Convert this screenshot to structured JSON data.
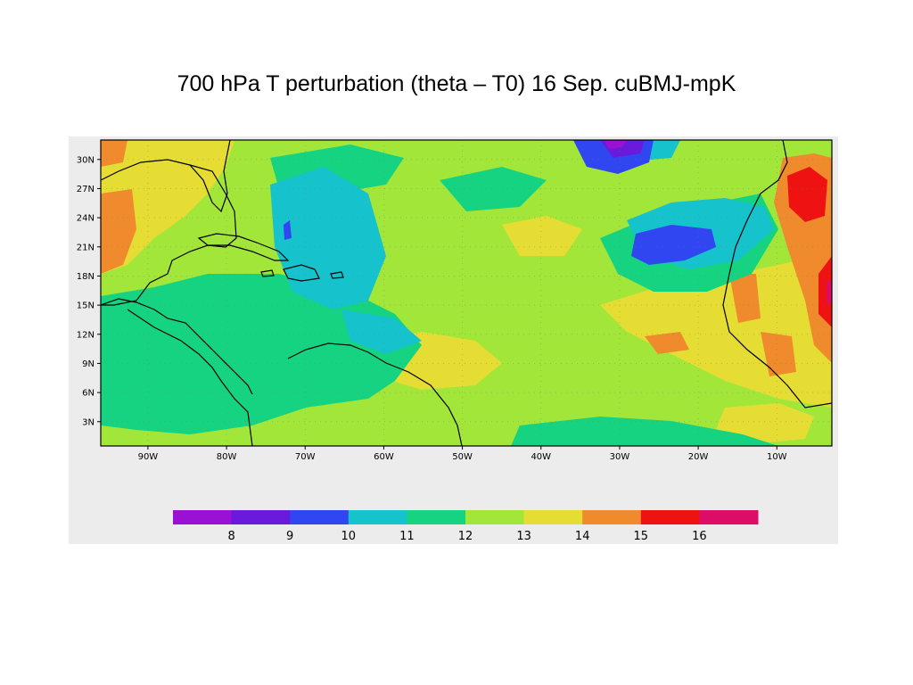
{
  "title": "700 hPa T perturbation (theta – T0) 16 Sep. cuBMJ-mpK",
  "map": {
    "lon_range": [
      -96,
      -3
    ],
    "lat_range": [
      0.5,
      32
    ],
    "lon_ticks": [
      "90W",
      "80W",
      "70W",
      "60W",
      "50W",
      "40W",
      "30W",
      "20W",
      "10W"
    ],
    "lon_tick_values": [
      -90,
      -80,
      -70,
      -60,
      -50,
      -40,
      -30,
      -20,
      -10
    ],
    "lat_ticks": [
      "30N",
      "27N",
      "24N",
      "21N",
      "18N",
      "15N",
      "12N",
      "9N",
      "6N",
      "3N"
    ],
    "lat_tick_values": [
      30,
      27,
      24,
      21,
      18,
      15,
      12,
      9,
      6,
      3
    ]
  },
  "colorbar": {
    "colors": [
      "#9a11d4",
      "#6a1adb",
      "#2f46f0",
      "#16c2cc",
      "#16d382",
      "#a3e63a",
      "#e5dd33",
      "#ef8a2d",
      "#ef1212",
      "#dd0c66"
    ],
    "labels": [
      "8",
      "9",
      "10",
      "11",
      "12",
      "13",
      "14",
      "15",
      "16"
    ]
  }
}
